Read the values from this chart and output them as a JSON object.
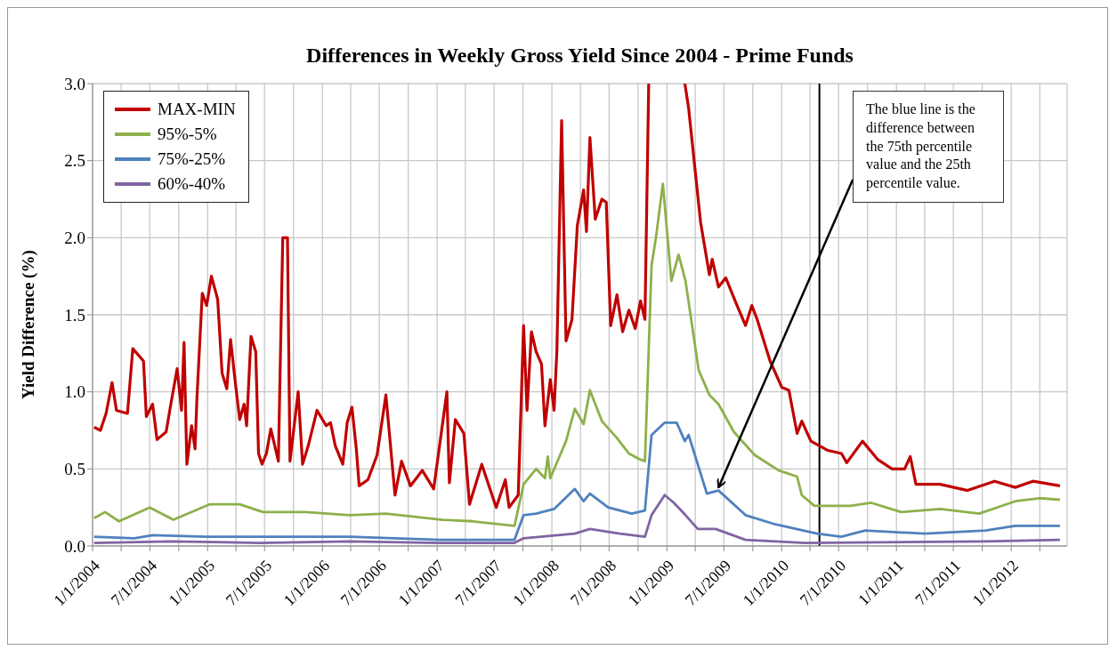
{
  "chart_data": {
    "type": "line",
    "title": "Differences in Weekly Gross Yield Since 2004 - Prime Funds",
    "ylabel": "Yield Difference (%)",
    "xlim": [
      "2004-01-01",
      "2012-06-27"
    ],
    "xticks": [
      {
        "value": "2004-01-01",
        "label": "1/1/2004"
      },
      {
        "value": "2004-04-01",
        "label": null
      },
      {
        "value": "2004-07-01",
        "label": "7/1/2004"
      },
      {
        "value": "2004-10-01",
        "label": null
      },
      {
        "value": "2005-01-01",
        "label": "1/1/2005"
      },
      {
        "value": "2005-04-01",
        "label": null
      },
      {
        "value": "2005-07-01",
        "label": "7/1/2005"
      },
      {
        "value": "2005-10-01",
        "label": null
      },
      {
        "value": "2006-01-01",
        "label": "1/1/2006"
      },
      {
        "value": "2006-04-01",
        "label": null
      },
      {
        "value": "2006-07-01",
        "label": "7/1/2006"
      },
      {
        "value": "2006-10-01",
        "label": null
      },
      {
        "value": "2007-01-01",
        "label": "1/1/2007"
      },
      {
        "value": "2007-04-01",
        "label": null
      },
      {
        "value": "2007-07-01",
        "label": "7/1/2007"
      },
      {
        "value": "2007-10-01",
        "label": null
      },
      {
        "value": "2008-01-01",
        "label": "1/1/2008"
      },
      {
        "value": "2008-04-01",
        "label": null
      },
      {
        "value": "2008-07-01",
        "label": "7/1/2008"
      },
      {
        "value": "2008-10-01",
        "label": null
      },
      {
        "value": "2009-01-01",
        "label": "1/1/2009"
      },
      {
        "value": "2009-04-01",
        "label": null
      },
      {
        "value": "2009-07-01",
        "label": "7/1/2009"
      },
      {
        "value": "2009-10-01",
        "label": null
      },
      {
        "value": "2010-01-01",
        "label": "1/1/2010"
      },
      {
        "value": "2010-04-01",
        "label": null
      },
      {
        "value": "2010-07-01",
        "label": "7/1/2010"
      },
      {
        "value": "2010-10-01",
        "label": null
      },
      {
        "value": "2011-01-01",
        "label": "1/1/2011"
      },
      {
        "value": "2011-04-01",
        "label": null
      },
      {
        "value": "2011-07-01",
        "label": "7/1/2011"
      },
      {
        "value": "2011-10-01",
        "label": null
      },
      {
        "value": "2012-01-01",
        "label": "1/1/2012"
      },
      {
        "value": "2012-04-01",
        "label": null
      }
    ],
    "ylim": [
      0,
      3
    ],
    "yticks": [
      {
        "value": 0,
        "label": "0.0"
      },
      {
        "value": 0.5,
        "label": "0.5"
      },
      {
        "value": 1,
        "label": "1.0"
      },
      {
        "value": 1.5,
        "label": "1.5"
      },
      {
        "value": 2,
        "label": "2.0"
      },
      {
        "value": 2.5,
        "label": "2.5"
      },
      {
        "value": 3,
        "label": "3.0"
      }
    ],
    "grid": true,
    "legend": "top left",
    "marker": "none",
    "line_style": "solid",
    "series": [
      {
        "name": "MAX-MIN",
        "color": "#c00000",
        "x": [
          "2004-01-06",
          "2004-01-26",
          "2004-02-13",
          "2004-03-03",
          "2004-03-17",
          "2004-04-21",
          "2004-05-08",
          "2004-06-11",
          "2004-06-20",
          "2004-07-10",
          "2004-07-24",
          "2004-08-22",
          "2004-09-06",
          "2004-09-26",
          "2004-10-10",
          "2004-10-18",
          "2004-10-27",
          "2004-11-11",
          "2004-11-22",
          "2004-11-28",
          "2004-12-15",
          "2004-12-29",
          "2005-01-13",
          "2005-02-02",
          "2005-02-16",
          "2005-03-03",
          "2005-03-15",
          "2005-03-29",
          "2005-04-13",
          "2005-04-27",
          "2005-05-05",
          "2005-05-19",
          "2005-06-03",
          "2005-06-12",
          "2005-06-23",
          "2005-07-07",
          "2005-07-21",
          "2005-08-14",
          "2005-08-28",
          "2005-09-12",
          "2005-09-20",
          "2005-10-16",
          "2005-10-30",
          "2005-11-17",
          "2005-12-15",
          "2006-01-13",
          "2006-01-27",
          "2006-02-11",
          "2006-03-07",
          "2006-03-21",
          "2006-04-05",
          "2006-04-19",
          "2006-04-28",
          "2006-05-26",
          "2006-06-24",
          "2006-07-22",
          "2006-08-20",
          "2006-09-10",
          "2006-10-08",
          "2006-11-15",
          "2006-12-21",
          "2007-02-01",
          "2007-02-09",
          "2007-02-28",
          "2007-03-27",
          "2007-04-14",
          "2007-05-23",
          "2007-07-08",
          "2007-08-06",
          "2007-08-18",
          "2007-09-16",
          "2007-10-03",
          "2007-10-14",
          "2007-10-28",
          "2007-11-12",
          "2007-11-29",
          "2007-12-10",
          "2007-12-27",
          "2008-01-08",
          "2008-01-17",
          "2008-02-01",
          "2008-02-15",
          "2008-03-05",
          "2008-03-22",
          "2008-04-11",
          "2008-04-20",
          "2008-05-01",
          "2008-05-18",
          "2008-06-08",
          "2008-06-22",
          "2008-07-06",
          "2008-07-26",
          "2008-08-13",
          "2008-09-02",
          "2008-09-22",
          "2008-10-09",
          "2008-10-23",
          "2008-11-04",
          "2008-12-31",
          "2009-02-27",
          "2009-03-11",
          "2009-04-18",
          "2009-05-16",
          "2009-05-25",
          "2009-06-14",
          "2009-07-07",
          "2009-08-10",
          "2009-09-08",
          "2009-09-28",
          "2009-10-15",
          "2009-11-25",
          "2010-01-01",
          "2010-01-24",
          "2010-02-19",
          "2010-03-06",
          "2010-04-04",
          "2010-05-28",
          "2010-07-10",
          "2010-07-27",
          "2010-09-15",
          "2010-11-03",
          "2010-12-18",
          "2011-01-27",
          "2011-02-14",
          "2011-03-04",
          "2011-05-20",
          "2011-08-15",
          "2011-11-09",
          "2012-01-14",
          "2012-03-10",
          "2012-06-04"
        ],
        "values": [
          0.77,
          0.75,
          0.86,
          1.06,
          0.88,
          0.86,
          1.28,
          1.2,
          0.84,
          0.92,
          0.69,
          0.74,
          0.92,
          1.15,
          0.88,
          1.32,
          0.53,
          0.78,
          0.63,
          0.96,
          1.64,
          1.56,
          1.75,
          1.6,
          1.12,
          1.02,
          1.34,
          1.08,
          0.82,
          0.92,
          0.78,
          1.36,
          1.26,
          0.6,
          0.53,
          0.6,
          0.76,
          0.55,
          2.0,
          2.0,
          0.55,
          1.0,
          0.53,
          0.65,
          0.88,
          0.78,
          0.8,
          0.65,
          0.53,
          0.8,
          0.9,
          0.63,
          0.39,
          0.43,
          0.59,
          0.98,
          0.33,
          0.55,
          0.39,
          0.49,
          0.37,
          1.0,
          0.41,
          0.82,
          0.73,
          0.27,
          0.53,
          0.25,
          0.43,
          0.25,
          0.33,
          1.43,
          0.88,
          1.39,
          1.26,
          1.18,
          0.78,
          1.08,
          0.88,
          1.27,
          2.76,
          1.33,
          1.47,
          2.08,
          2.31,
          2.04,
          2.65,
          2.12,
          2.25,
          2.23,
          1.43,
          1.63,
          1.39,
          1.53,
          1.41,
          1.59,
          1.47,
          3.0,
          null,
          3.0,
          2.84,
          2.1,
          1.76,
          1.86,
          1.68,
          1.74,
          1.57,
          1.43,
          1.56,
          1.47,
          1.2,
          1.03,
          1.01,
          0.73,
          0.81,
          0.68,
          0.62,
          0.6,
          0.54,
          0.68,
          0.56,
          0.5,
          0.5,
          0.58,
          0.4,
          0.4,
          0.36,
          0.42,
          0.38,
          0.42,
          0.39
        ]
      },
      {
        "name": "95%-5%",
        "color": "#8db04a",
        "x": [
          "2004-01-06",
          "2004-02-10",
          "2004-03-25",
          "2004-07-01",
          "2004-09-14",
          "2005-01-07",
          "2005-04-13",
          "2005-06-26",
          "2005-11-08",
          "2006-03-29",
          "2006-07-22",
          "2007-01-19",
          "2007-04-25",
          "2007-09-04",
          "2007-10-03",
          "2007-11-12",
          "2007-12-10",
          "2007-12-19",
          "2007-12-27",
          "2008-02-15",
          "2008-03-14",
          "2008-04-11",
          "2008-05-01",
          "2008-06-08",
          "2008-07-26",
          "2008-09-02",
          "2008-10-09",
          "2008-10-23",
          "2008-11-13",
          "2008-11-27",
          "2008-12-19",
          "2009-01-15",
          "2009-02-07",
          "2009-03-01",
          "2009-04-12",
          "2009-05-16",
          "2009-06-14",
          "2009-08-02",
          "2009-10-07",
          "2009-12-23",
          "2010-02-19",
          "2010-03-06",
          "2010-04-15",
          "2010-08-08",
          "2010-10-13",
          "2011-01-16",
          "2011-05-20",
          "2011-09-21",
          "2012-01-14",
          "2012-03-30",
          "2012-06-04"
        ],
        "values": [
          0.18,
          0.22,
          0.16,
          0.25,
          0.17,
          0.27,
          0.27,
          0.22,
          0.22,
          0.2,
          0.21,
          0.17,
          0.16,
          0.13,
          0.4,
          0.5,
          0.44,
          0.58,
          0.44,
          0.68,
          0.89,
          0.79,
          1.01,
          0.81,
          0.7,
          0.6,
          0.56,
          0.55,
          1.82,
          2.0,
          2.35,
          1.72,
          1.89,
          1.72,
          1.14,
          0.98,
          0.92,
          0.74,
          0.59,
          0.49,
          0.45,
          0.33,
          0.26,
          0.26,
          0.28,
          0.22,
          0.24,
          0.21,
          0.29,
          0.31,
          0.3
        ]
      },
      {
        "name": "75%-25%",
        "color": "#4f81bd",
        "x": [
          "2004-01-06",
          "2004-05-13",
          "2004-07-10",
          "2004-12-29",
          "2005-06-17",
          "2006-03-29",
          "2006-08-20",
          "2007-01-10",
          "2007-09-04",
          "2007-10-03",
          "2007-11-12",
          "2008-01-08",
          "2008-03-14",
          "2008-04-11",
          "2008-05-01",
          "2008-06-28",
          "2008-09-11",
          "2008-10-23",
          "2008-11-13",
          "2008-12-25",
          "2009-02-01",
          "2009-02-27",
          "2009-03-11",
          "2009-05-08",
          "2009-06-14",
          "2009-09-08",
          "2009-12-12",
          "2010-04-24",
          "2010-07-10",
          "2010-09-23",
          "2011-04-02",
          "2011-10-11",
          "2012-01-14",
          "2012-06-04"
        ],
        "values": [
          0.06,
          0.05,
          0.07,
          0.06,
          0.06,
          0.06,
          0.05,
          0.04,
          0.04,
          0.2,
          0.21,
          0.24,
          0.37,
          0.29,
          0.34,
          0.25,
          0.21,
          0.23,
          0.72,
          0.8,
          0.8,
          0.68,
          0.72,
          0.34,
          0.36,
          0.2,
          0.14,
          0.08,
          0.06,
          0.1,
          0.08,
          0.1,
          0.13,
          0.13
        ]
      },
      {
        "name": "60%-40%",
        "color": "#8064a2",
        "x": [
          "2004-01-06",
          "2004-09-06",
          "2005-06-17",
          "2006-03-29",
          "2007-01-10",
          "2007-09-04",
          "2007-10-03",
          "2008-03-14",
          "2008-05-01",
          "2008-08-04",
          "2008-10-23",
          "2008-11-13",
          "2008-12-25",
          "2009-01-23",
          "2009-03-01",
          "2009-04-09",
          "2009-06-05",
          "2009-09-08",
          "2010-03-17",
          "2011-10-11",
          "2012-06-04"
        ],
        "values": [
          0.02,
          0.03,
          0.02,
          0.03,
          0.02,
          0.02,
          0.05,
          0.08,
          0.11,
          0.08,
          0.06,
          0.2,
          0.33,
          0.28,
          0.2,
          0.11,
          0.11,
          0.04,
          0.02,
          0.03,
          0.04
        ]
      }
    ],
    "ref_lines": [
      {
        "axis": "x",
        "value": "2010-05-01",
        "color": "#000000"
      }
    ],
    "annotations": [
      {
        "text": "The blue line is the difference between the 75th percentile value and the 25th percentile value.",
        "x": "2009-06-14",
        "y": 0.38
      }
    ]
  }
}
